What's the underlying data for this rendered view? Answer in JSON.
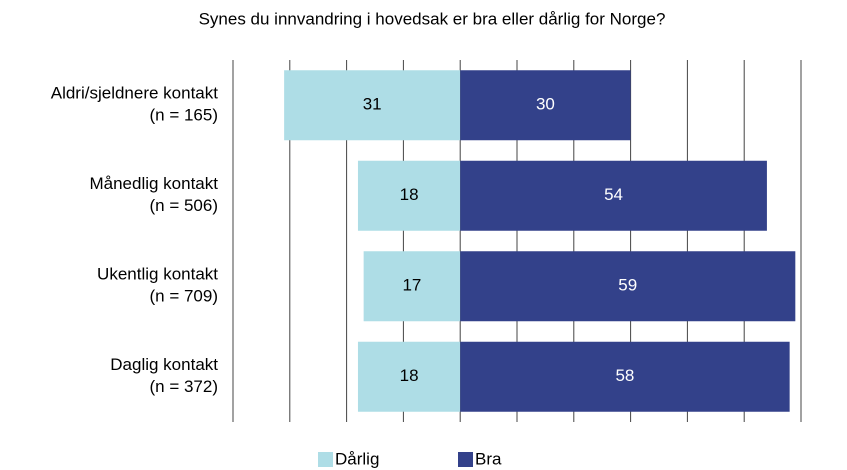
{
  "chart_data": {
    "type": "diverging_bar",
    "title": "Synes du innvandring i hovedsak er bra eller dårlig for Norge?",
    "categories": [
      [
        "Aldri/sjeldnere kontakt",
        "(n = 165)"
      ],
      [
        "Månedlig kontakt",
        "(n = 506)"
      ],
      [
        "Ukentlig kontakt",
        "(n = 709)"
      ],
      [
        "Daglig kontakt",
        "(n = 372)"
      ]
    ],
    "series": [
      {
        "name": "Dårlig",
        "color": "#aedde6",
        "direction": "left",
        "values": [
          31,
          18,
          17,
          18
        ]
      },
      {
        "name": "Bra",
        "color": "#33418a",
        "direction": "right",
        "values": [
          30,
          54,
          59,
          58
        ]
      }
    ],
    "xlim": [
      -40,
      60
    ],
    "xticks": [
      -40,
      -30,
      -20,
      -10,
      0,
      10,
      20,
      30,
      40,
      50,
      60
    ],
    "grid": true,
    "legend": "bottom"
  }
}
